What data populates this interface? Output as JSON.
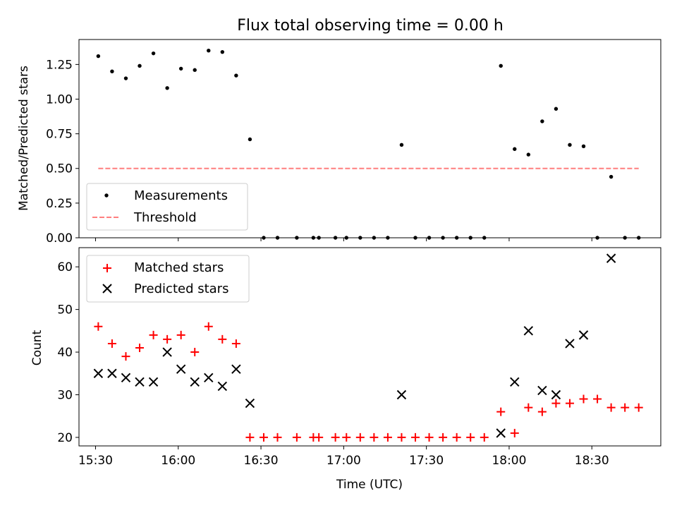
{
  "chart_data": [
    {
      "type": "scatter",
      "title": "Flux total observing time = 0.00 h",
      "xlabel": "",
      "ylabel": "Matched/Predicted stars",
      "xlim": [
        924,
        1135
      ],
      "ylim": [
        0.0,
        1.43
      ],
      "yticks": [
        0.0,
        0.25,
        0.5,
        0.75,
        1.0,
        1.25
      ],
      "ytick_labels": [
        "0.00",
        "0.25",
        "0.50",
        "0.75",
        "1.00",
        "1.25"
      ],
      "xticks": [
        930,
        960,
        990,
        1020,
        1050,
        1080,
        1110
      ],
      "legend_position": "lower-left",
      "series": [
        {
          "name": "Measurements",
          "marker": "dot",
          "color": "#000000",
          "points": [
            [
              931,
              1.31
            ],
            [
              936,
              1.2
            ],
            [
              941,
              1.15
            ],
            [
              946,
              1.24
            ],
            [
              951,
              1.33
            ],
            [
              956,
              1.08
            ],
            [
              961,
              1.22
            ],
            [
              966,
              1.21
            ],
            [
              971,
              1.35
            ],
            [
              976,
              1.34
            ],
            [
              981,
              1.17
            ],
            [
              986,
              0.71
            ],
            [
              991,
              0.0
            ],
            [
              996,
              0.0
            ],
            [
              1003,
              0.0
            ],
            [
              1009,
              0.0
            ],
            [
              1011,
              0.0
            ],
            [
              1017,
              0.0
            ],
            [
              1021,
              0.0
            ],
            [
              1026,
              0.0
            ],
            [
              1031,
              0.0
            ],
            [
              1036,
              0.0
            ],
            [
              1041,
              0.67
            ],
            [
              1046,
              0.0
            ],
            [
              1051,
              0.0
            ],
            [
              1056,
              0.0
            ],
            [
              1061,
              0.0
            ],
            [
              1066,
              0.0
            ],
            [
              1071,
              0.0
            ],
            [
              1077,
              1.24
            ],
            [
              1082,
              0.64
            ],
            [
              1087,
              0.6
            ],
            [
              1092,
              0.84
            ],
            [
              1097,
              0.93
            ],
            [
              1102,
              0.67
            ],
            [
              1107,
              0.66
            ],
            [
              1112,
              0.0
            ],
            [
              1117,
              0.44
            ],
            [
              1122,
              0.0
            ],
            [
              1127,
              0.0
            ]
          ]
        },
        {
          "name": "Threshold",
          "marker": "dashed-line",
          "color": "#ff7f7f",
          "points": [
            [
              931,
              0.5
            ],
            [
              1127,
              0.5
            ]
          ]
        }
      ]
    },
    {
      "type": "scatter",
      "title": "",
      "xlabel": "Time (UTC)",
      "ylabel": "Count",
      "xlim": [
        924,
        1135
      ],
      "ylim": [
        18,
        64.5
      ],
      "yticks": [
        20,
        30,
        40,
        50,
        60
      ],
      "ytick_labels": [
        "20",
        "30",
        "40",
        "50",
        "60"
      ],
      "xticks": [
        930,
        960,
        990,
        1020,
        1050,
        1080,
        1110
      ],
      "xtick_labels": [
        "15:30",
        "16:00",
        "16:30",
        "17:00",
        "17:30",
        "18:00",
        "18:30"
      ],
      "legend_position": "top-left",
      "series": [
        {
          "name": "Matched stars",
          "marker": "plus",
          "color": "#ff0000",
          "points": [
            [
              931,
              46
            ],
            [
              936,
              42
            ],
            [
              941,
              39
            ],
            [
              946,
              41
            ],
            [
              951,
              44
            ],
            [
              956,
              43
            ],
            [
              961,
              44
            ],
            [
              966,
              40
            ],
            [
              971,
              46
            ],
            [
              976,
              43
            ],
            [
              981,
              42
            ],
            [
              986,
              20
            ],
            [
              991,
              20
            ],
            [
              996,
              20
            ],
            [
              1003,
              20
            ],
            [
              1009,
              20
            ],
            [
              1011,
              20
            ],
            [
              1017,
              20
            ],
            [
              1021,
              20
            ],
            [
              1026,
              20
            ],
            [
              1031,
              20
            ],
            [
              1036,
              20
            ],
            [
              1041,
              20
            ],
            [
              1046,
              20
            ],
            [
              1051,
              20
            ],
            [
              1056,
              20
            ],
            [
              1061,
              20
            ],
            [
              1066,
              20
            ],
            [
              1071,
              20
            ],
            [
              1077,
              26
            ],
            [
              1082,
              21
            ],
            [
              1087,
              27
            ],
            [
              1092,
              26
            ],
            [
              1097,
              28
            ],
            [
              1102,
              28
            ],
            [
              1107,
              29
            ],
            [
              1112,
              29
            ],
            [
              1117,
              27
            ],
            [
              1122,
              27
            ],
            [
              1127,
              27
            ]
          ]
        },
        {
          "name": "Predicted stars",
          "marker": "x",
          "color": "#000000",
          "points": [
            [
              931,
              35
            ],
            [
              936,
              35
            ],
            [
              941,
              34
            ],
            [
              946,
              33
            ],
            [
              951,
              33
            ],
            [
              956,
              40
            ],
            [
              961,
              36
            ],
            [
              966,
              33
            ],
            [
              971,
              34
            ],
            [
              976,
              32
            ],
            [
              981,
              36
            ],
            [
              986,
              28
            ],
            [
              1041,
              30
            ],
            [
              1077,
              21
            ],
            [
              1082,
              33
            ],
            [
              1087,
              45
            ],
            [
              1092,
              31
            ],
            [
              1097,
              30
            ],
            [
              1102,
              42
            ],
            [
              1107,
              44
            ],
            [
              1117,
              62
            ]
          ]
        }
      ]
    }
  ]
}
